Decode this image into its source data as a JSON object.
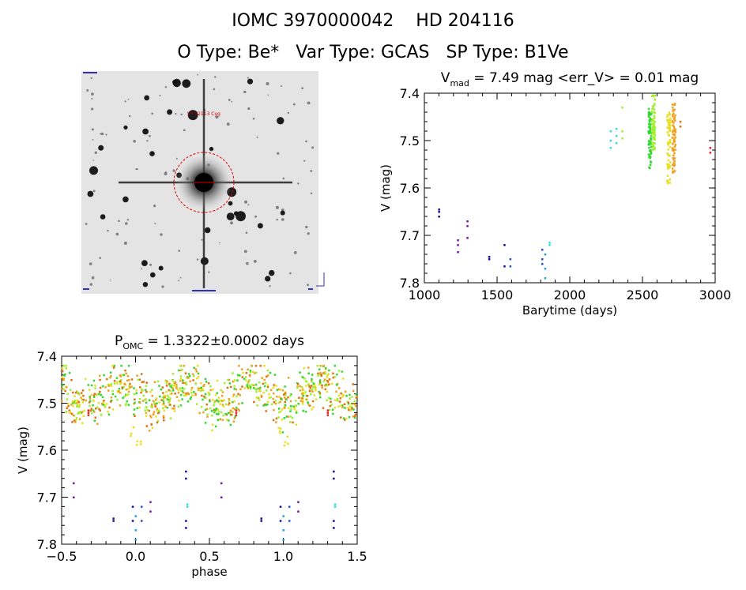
{
  "header": {
    "line1": "IOMC 3970000042    HD 204116",
    "line2": "O Type: Be*   Var Type: GCAS   SP Type: B1Ve"
  },
  "image_panel": {
    "star_label": "V* V2113 Cyg"
  },
  "colors": {
    "dark_blue": "#101090",
    "purple": "#7a10b0",
    "blue": "#2050d0",
    "sky": "#20a0e0",
    "cyan": "#30e0e0",
    "green": "#30d830",
    "lime": "#a0f030",
    "yellow": "#e8e020",
    "orange": "#f0a020",
    "dark_orange": "#e07010",
    "red": "#e02020"
  },
  "chart_data": [
    {
      "type": "scatter",
      "title_main": "V",
      "title_sub": "mad",
      "title_rest": " = 7.49 mag <err_V> = 0.01 mag",
      "xlabel": "Barytime (days)",
      "ylabel": "V (mag)",
      "xlim": [
        1000,
        3000
      ],
      "ylim": [
        7.4,
        7.8
      ],
      "y_inverted": true,
      "xticks": [
        1000,
        1500,
        2000,
        2500,
        3000
      ],
      "yticks": [
        7.4,
        7.5,
        7.6,
        7.7,
        7.8
      ],
      "groups": [
        {
          "color": "dark_blue",
          "x": 1100,
          "y": [
            7.65,
            7.66,
            7.645
          ]
        },
        {
          "color": "purple",
          "x": 1230,
          "y": [
            7.71,
            7.72,
            7.735
          ]
        },
        {
          "color": "purple",
          "x": 1295,
          "y": [
            7.67,
            7.68,
            7.705
          ]
        },
        {
          "color": "dark_blue",
          "x": 1445,
          "y": [
            7.745,
            7.75
          ]
        },
        {
          "color": "dark_blue",
          "x": 1550,
          "y": [
            7.72,
            7.765
          ]
        },
        {
          "color": "blue",
          "x": 1590,
          "y": [
            7.75,
            7.765
          ]
        },
        {
          "color": "blue",
          "x": 1810,
          "y": [
            7.73,
            7.75,
            7.76
          ]
        },
        {
          "color": "sky",
          "x": 1830,
          "y": [
            7.74,
            7.77,
            7.79
          ]
        },
        {
          "color": "cyan",
          "x": 1860,
          "y": [
            7.715,
            7.72
          ]
        },
        {
          "color": "cyan",
          "x": 2280,
          "y": [
            7.48,
            7.5,
            7.515
          ]
        },
        {
          "color": "cyan",
          "x": 2320,
          "y": [
            7.475,
            7.49,
            7.505
          ]
        },
        {
          "color": "lime",
          "x": 2360,
          "y": [
            7.43,
            7.48,
            7.495
          ]
        },
        {
          "color": "green",
          "x": 2550,
          "y_range": [
            7.43,
            7.56
          ]
        },
        {
          "color": "lime",
          "x": 2575,
          "y_range": [
            7.4,
            7.52
          ]
        },
        {
          "color": "yellow",
          "x": 2680,
          "y_range": [
            7.44,
            7.59
          ]
        },
        {
          "color": "orange",
          "x": 2715,
          "y_range": [
            7.42,
            7.57
          ]
        },
        {
          "color": "dark_orange",
          "x": 2760,
          "y": [
            7.46,
            7.47
          ]
        },
        {
          "color": "red",
          "x": 2965,
          "y": [
            7.515,
            7.525
          ]
        }
      ]
    },
    {
      "type": "scatter",
      "title_main": "P",
      "title_sub": "OMC",
      "title_rest": " = 1.3322±0.0002 days",
      "xlabel": "phase",
      "ylabel": "V (mag)",
      "xlim": [
        -0.5,
        1.5
      ],
      "ylim": [
        7.4,
        7.8
      ],
      "y_inverted": true,
      "xticks": [
        -0.5,
        0.0,
        0.5,
        1.0,
        1.5
      ],
      "xtick_labels": [
        "−0.5",
        "0.0",
        "0.5",
        "1.0",
        "1.5"
      ],
      "yticks": [
        7.4,
        7.5,
        7.6,
        7.7,
        7.8
      ],
      "bright_band": {
        "y_center": 7.48,
        "spread": 0.06,
        "colors": [
          "green",
          "lime",
          "yellow",
          "orange",
          "dark_orange"
        ]
      },
      "faint_points": [
        {
          "color": "purple",
          "x": -0.42,
          "y": [
            7.67,
            7.7
          ]
        },
        {
          "color": "dark_blue",
          "x": -0.15,
          "y": [
            7.745,
            7.75
          ]
        },
        {
          "color": "dark_blue",
          "x": -0.02,
          "y": [
            7.72,
            7.75
          ]
        },
        {
          "color": "sky",
          "x": 0.0,
          "y": [
            7.74,
            7.77,
            7.79
          ]
        },
        {
          "color": "blue",
          "x": 0.04,
          "y": [
            7.72,
            7.75
          ]
        },
        {
          "color": "purple",
          "x": 0.1,
          "y": [
            7.71,
            7.73
          ]
        },
        {
          "color": "dark_blue",
          "x": 0.34,
          "y": [
            7.645,
            7.66,
            7.75,
            7.765
          ]
        },
        {
          "color": "cyan",
          "x": 0.35,
          "y": [
            7.715,
            7.72
          ]
        },
        {
          "color": "purple",
          "x": 0.58,
          "y": [
            7.67,
            7.7
          ]
        },
        {
          "color": "dark_blue",
          "x": 0.85,
          "y": [
            7.745,
            7.75
          ]
        },
        {
          "color": "dark_blue",
          "x": 0.98,
          "y": [
            7.72,
            7.75
          ]
        },
        {
          "color": "sky",
          "x": 1.0,
          "y": [
            7.74,
            7.77,
            7.79
          ]
        },
        {
          "color": "blue",
          "x": 1.04,
          "y": [
            7.72,
            7.75
          ]
        },
        {
          "color": "purple",
          "x": 1.1,
          "y": [
            7.71,
            7.73
          ]
        },
        {
          "color": "dark_blue",
          "x": 1.34,
          "y": [
            7.645,
            7.66,
            7.75,
            7.765
          ]
        },
        {
          "color": "cyan",
          "x": 1.35,
          "y": [
            7.715,
            7.72
          ]
        }
      ],
      "red_points": [
        {
          "x": -0.32,
          "y": 7.52
        },
        {
          "x": 0.68,
          "y": 7.52
        },
        {
          "x": 1.3,
          "y": 7.52
        }
      ],
      "dip_points": [
        {
          "x": -0.02,
          "y": 7.56
        },
        {
          "x": 0.02,
          "y": 7.58
        },
        {
          "x": 0.98,
          "y": 7.56
        },
        {
          "x": 1.02,
          "y": 7.58
        }
      ]
    }
  ]
}
